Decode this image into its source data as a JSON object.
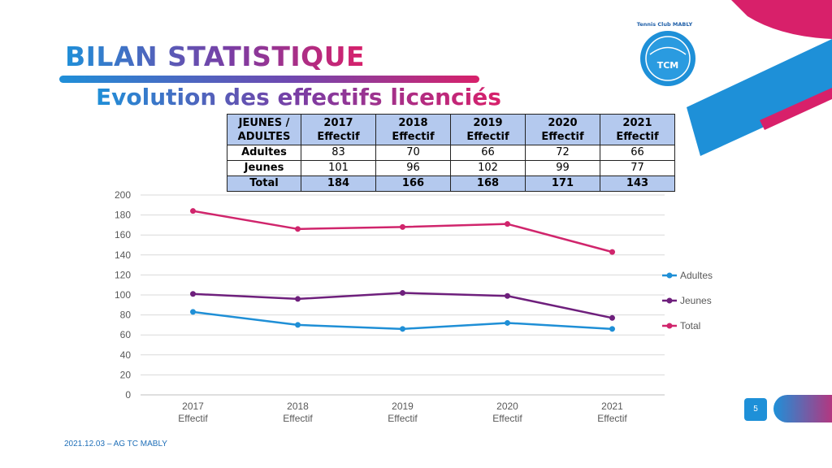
{
  "header": {
    "title": "BILAN STATISTIQUE",
    "subtitle": "Evolution des effectifs licenciés"
  },
  "logo": {
    "text_club": "Tennis Club MABLY",
    "initials": "TCM"
  },
  "table": {
    "corner_line1": "JEUNES /",
    "corner_line2": "ADULTES",
    "columns": [
      {
        "year": "2017",
        "label": "Effectif"
      },
      {
        "year": "2018",
        "label": "Effectif"
      },
      {
        "year": "2019",
        "label": "Effectif"
      },
      {
        "year": "2020",
        "label": "Effectif"
      },
      {
        "year": "2021",
        "label": "Effectif"
      }
    ],
    "rows": [
      {
        "label": "Adultes",
        "values": [
          "83",
          "70",
          "66",
          "72",
          "66"
        ]
      },
      {
        "label": "Jeunes",
        "values": [
          "101",
          "96",
          "102",
          "99",
          "77"
        ]
      },
      {
        "label": "Total",
        "values": [
          "184",
          "166",
          "168",
          "171",
          "143"
        ]
      }
    ]
  },
  "chart_data": {
    "type": "line",
    "categories": [
      [
        "2017",
        "Effectif"
      ],
      [
        "2018",
        "Effectif"
      ],
      [
        "2019",
        "Effectif"
      ],
      [
        "2020",
        "Effectif"
      ],
      [
        "2021",
        "Effectif"
      ]
    ],
    "series": [
      {
        "name": "Adultes",
        "values": [
          83,
          70,
          66,
          72,
          66
        ],
        "color": "#1f8fd6"
      },
      {
        "name": "Jeunes",
        "values": [
          101,
          96,
          102,
          99,
          77
        ],
        "color": "#6e1f7c"
      },
      {
        "name": "Total",
        "values": [
          184,
          166,
          168,
          171,
          143
        ],
        "color": "#d0256c"
      }
    ],
    "ylim": [
      0,
      200
    ],
    "yticks": [
      0,
      20,
      40,
      60,
      80,
      100,
      120,
      140,
      160,
      180,
      200
    ],
    "grid": true,
    "legend": "right",
    "title": "",
    "xlabel": "",
    "ylabel": ""
  },
  "footer": {
    "text": "2021.12.03 – AG TC MABLY",
    "page_number": "5"
  },
  "colors": {
    "blue": "#1e90d8",
    "pink": "#d8206a",
    "purple": "#6e1f7c",
    "table_header": "#b4c9ee"
  }
}
